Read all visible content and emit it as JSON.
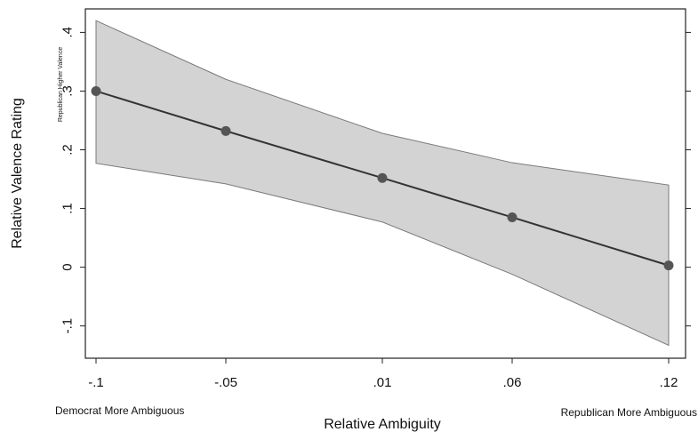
{
  "chart_data": {
    "type": "line",
    "xlabel": "Relative Ambiguity",
    "ylabel": "Relative Valence Rating",
    "x_categories": [
      "-.1",
      "-.05",
      ".01",
      ".06",
      ".12"
    ],
    "x": [
      -0.1,
      -0.05,
      0.01,
      0.06,
      0.12
    ],
    "y_ticks": [
      "-.1",
      "0",
      ".1",
      ".2",
      ".3",
      ".4"
    ],
    "y_tick_values": [
      -0.1,
      0,
      0.1,
      0.2,
      0.3,
      0.4
    ],
    "ylim": [
      -0.155,
      0.44
    ],
    "series": [
      {
        "values": [
          0.3,
          0.232,
          0.152,
          0.085,
          0.003
        ],
        "ci_upper": [
          0.42,
          0.32,
          0.228,
          0.178,
          0.14
        ],
        "ci_lower": [
          0.177,
          0.142,
          0.077,
          -0.012,
          -0.133
        ]
      }
    ],
    "annotations": {
      "left_note": "Democrat More Ambiguous",
      "right_note": "Republican More Ambiguous",
      "top_note": "Republican Higher Valence"
    },
    "colors": {
      "band_fill": "#d3d3d3",
      "band_stroke": "#7a7a7a",
      "line": "#333333",
      "marker": "#555555"
    },
    "grid": false
  }
}
